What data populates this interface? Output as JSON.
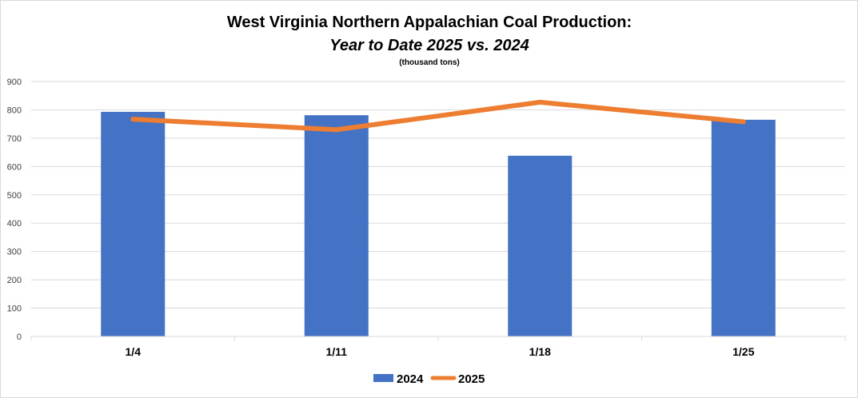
{
  "chart_data": {
    "type": "bar+line",
    "title": "West Virginia Northern Appalachian Coal Production:",
    "subtitle": "Year to Date 2025 vs. 2024",
    "unit_note": "(thousand tons)",
    "categories": [
      "1/4",
      "1/11",
      "1/18",
      "1/25"
    ],
    "series": [
      {
        "name": "2024",
        "kind": "bar",
        "color": "#4472C4",
        "values": [
          793,
          781,
          638,
          765
        ]
      },
      {
        "name": "2025",
        "kind": "line",
        "color": "#ED7D31",
        "values": [
          767,
          730,
          827,
          758
        ]
      }
    ],
    "yticks": [
      "0",
      "100",
      "200",
      "300",
      "400",
      "500",
      "600",
      "700",
      "800",
      "900"
    ],
    "ylim": [
      0,
      900
    ],
    "grid": true,
    "legend": "bottom-center"
  }
}
